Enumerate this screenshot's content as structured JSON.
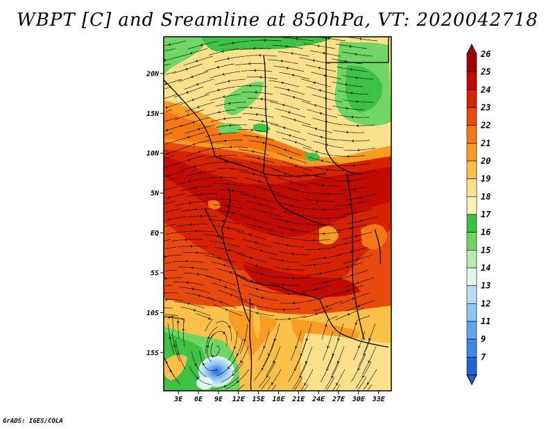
{
  "title": "WBPT [C] and Sreamline at 850hPa, VT: 2020042718",
  "credit": "GrADS: IGES/COLA",
  "lat_ticks": [
    {
      "label": "20N",
      "value": 20
    },
    {
      "label": "15N",
      "value": 15
    },
    {
      "label": "10N",
      "value": 10
    },
    {
      "label": "5N",
      "value": 5
    },
    {
      "label": "EQ",
      "value": 0
    },
    {
      "label": "5S",
      "value": -5
    },
    {
      "label": "10S",
      "value": -10
    },
    {
      "label": "15S",
      "value": -15
    }
  ],
  "lon_ticks": [
    {
      "label": "3E",
      "value": 3
    },
    {
      "label": "6E",
      "value": 6
    },
    {
      "label": "9E",
      "value": 9
    },
    {
      "label": "12E",
      "value": 12
    },
    {
      "label": "15E",
      "value": 15
    },
    {
      "label": "18E",
      "value": 18
    },
    {
      "label": "21E",
      "value": 21
    },
    {
      "label": "24E",
      "value": 24
    },
    {
      "label": "27E",
      "value": 27
    },
    {
      "label": "30E",
      "value": 30
    },
    {
      "label": "33E",
      "value": 33
    }
  ],
  "colorbar": {
    "levels": [
      {
        "label": "26",
        "color": "#a00000"
      },
      {
        "label": "25",
        "color": "#c10b00"
      },
      {
        "label": "24",
        "color": "#d72200"
      },
      {
        "label": "23",
        "color": "#e84a0e"
      },
      {
        "label": "22",
        "color": "#f57814"
      },
      {
        "label": "21",
        "color": "#fa9c24"
      },
      {
        "label": "20",
        "color": "#fbc04a"
      },
      {
        "label": "19",
        "color": "#fce08c"
      },
      {
        "label": "18",
        "color": "#fbf3b4"
      },
      {
        "label": "17",
        "color": "#3ec144"
      },
      {
        "label": "16",
        "color": "#6fd665"
      },
      {
        "label": "15",
        "color": "#b6ecad"
      },
      {
        "label": "14",
        "color": "#e2f8ee"
      },
      {
        "label": "13",
        "color": "#b6dcf8"
      },
      {
        "label": "12",
        "color": "#8ec5f4"
      },
      {
        "label": "11",
        "color": "#5fa5ec"
      },
      {
        "label": "9",
        "color": "#3c8ae6"
      },
      {
        "label": "7",
        "color": "#1e64d2"
      }
    ]
  }
}
